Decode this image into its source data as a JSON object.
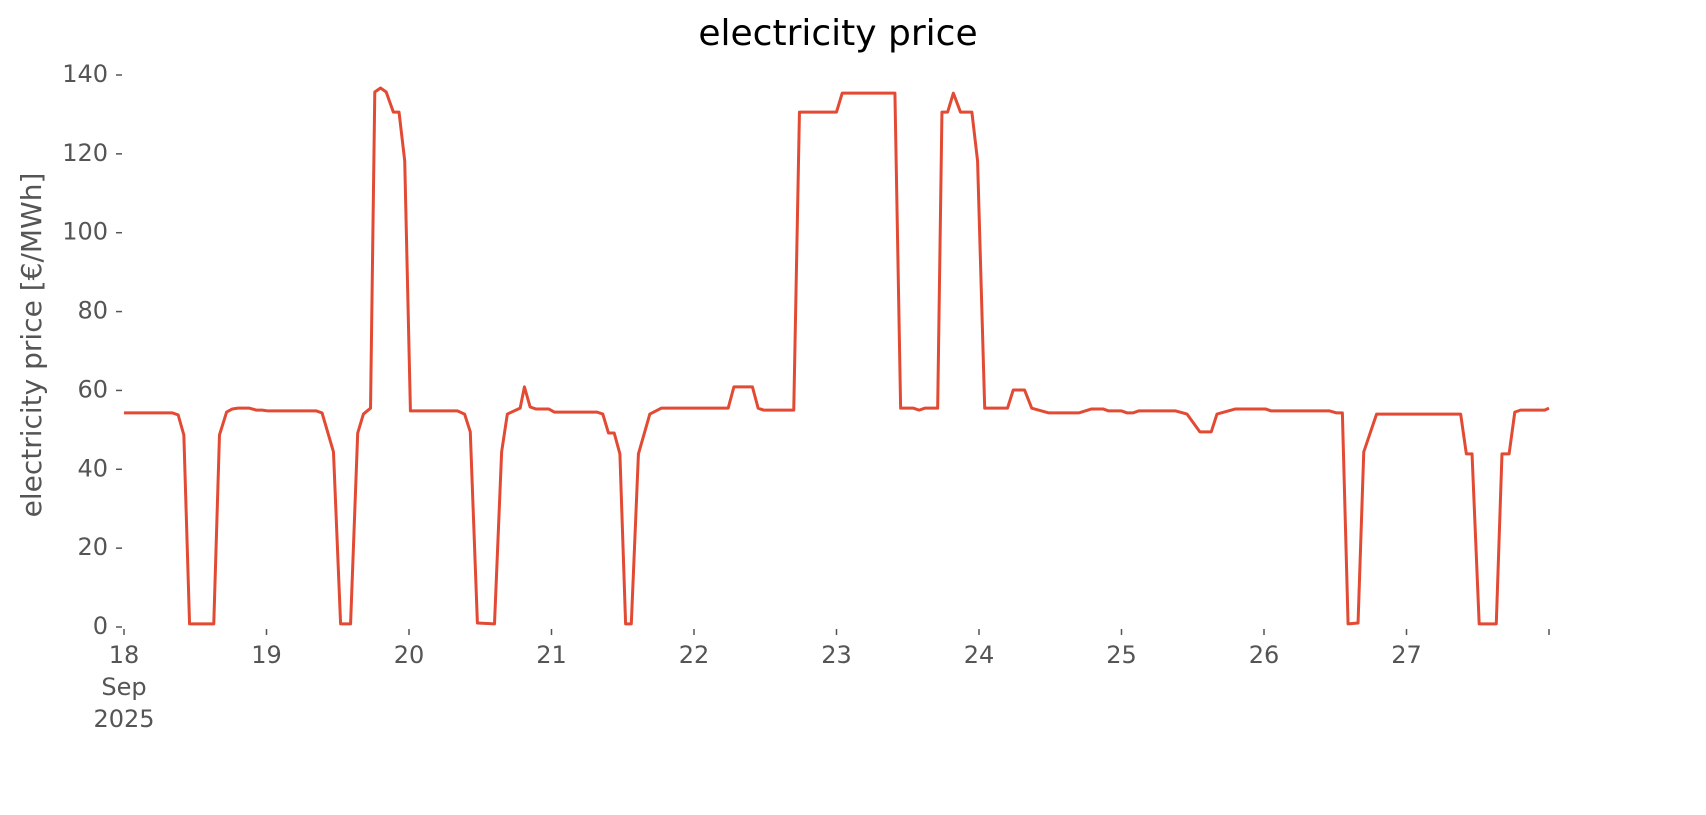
{
  "chart_data": {
    "type": "line",
    "title": "electricity price",
    "ylabel": "electricity price [€/MWh]",
    "xlim": [
      18,
      28
    ],
    "ylim": [
      0,
      140
    ],
    "xticks": [
      {
        "value": 18,
        "label": "18\nSep\n2025"
      },
      19,
      20,
      21,
      22,
      23,
      24,
      25,
      26,
      27,
      {
        "value": 28,
        "label": null
      }
    ],
    "yticks": [
      0,
      20,
      40,
      60,
      80,
      100,
      120,
      140
    ],
    "grid": false,
    "series": [
      {
        "name": "electricity price",
        "color": "#e24a33",
        "x": [
          18.0,
          18.34,
          18.38,
          18.42,
          18.46,
          18.63,
          18.67,
          18.72,
          18.76,
          18.8,
          18.88,
          18.93,
          18.97,
          19.01,
          19.35,
          19.39,
          19.47,
          19.52,
          19.59,
          19.64,
          19.68,
          19.73,
          19.76,
          19.8,
          19.84,
          19.89,
          19.93,
          19.97,
          20.01,
          20.34,
          20.39,
          20.43,
          20.48,
          20.6,
          20.65,
          20.69,
          20.78,
          20.81,
          20.85,
          20.89,
          20.98,
          21.02,
          21.32,
          21.36,
          21.4,
          21.44,
          21.48,
          21.52,
          21.56,
          21.61,
          21.69,
          21.77,
          22.24,
          22.28,
          22.41,
          22.45,
          22.49,
          22.7,
          22.74,
          23.0,
          23.04,
          23.41,
          23.45,
          23.54,
          23.58,
          23.62,
          23.71,
          23.74,
          23.78,
          23.82,
          23.87,
          23.95,
          23.99,
          24.04,
          24.2,
          24.24,
          24.32,
          24.37,
          24.49,
          24.7,
          24.79,
          24.87,
          24.91,
          25.0,
          25.04,
          25.08,
          25.12,
          25.38,
          25.46,
          25.55,
          25.63,
          25.67,
          25.8,
          26.01,
          26.05,
          26.46,
          26.51,
          26.55,
          26.59,
          26.66,
          26.7,
          26.79,
          27.38,
          27.42,
          27.46,
          27.51,
          27.63,
          27.67,
          27.72,
          27.76,
          27.8,
          27.97,
          28.0
        ],
        "values": [
          54.3,
          54.3,
          53.8,
          48.7,
          0.8,
          0.8,
          48.7,
          54.5,
          55.3,
          55.5,
          55.5,
          55,
          55,
          54.8,
          54.8,
          54.3,
          44.4,
          0.8,
          0.8,
          49.2,
          54,
          55.5,
          135.7,
          136.7,
          135.7,
          130.6,
          130.6,
          118.2,
          54.8,
          54.8,
          54,
          49.5,
          1,
          0.8,
          44.4,
          54,
          55.5,
          60.9,
          55.8,
          55.3,
          55.3,
          54.5,
          54.5,
          54,
          49.2,
          49.2,
          43.9,
          0.8,
          0.8,
          43.9,
          54,
          55.5,
          55.5,
          60.9,
          60.9,
          55.5,
          55,
          55,
          130.6,
          130.6,
          135.4,
          135.4,
          55.5,
          55.5,
          55,
          55.5,
          55.5,
          130.6,
          130.6,
          135.4,
          130.6,
          130.6,
          118.2,
          55.5,
          55.5,
          60.1,
          60.1,
          55.5,
          54.3,
          54.3,
          55.3,
          55.3,
          54.8,
          54.8,
          54.3,
          54.3,
          54.8,
          54.8,
          54,
          49.5,
          49.5,
          54,
          55.3,
          55.3,
          54.8,
          54.8,
          54.3,
          54.3,
          0.8,
          1,
          44.4,
          54,
          54,
          43.9,
          43.9,
          0.8,
          0.8,
          43.9,
          43.9,
          54.5,
          55,
          55,
          55.5
        ]
      }
    ]
  }
}
